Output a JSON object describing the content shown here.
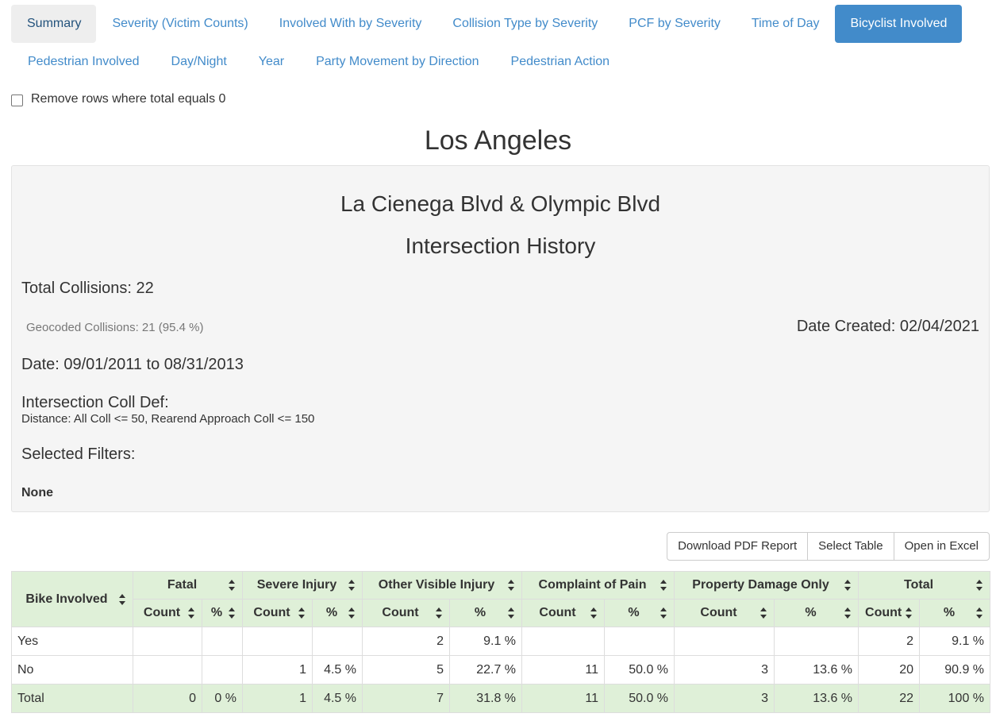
{
  "tabs_row1": [
    "Summary",
    "Severity (Victim Counts)",
    "Involved With by Severity",
    "Collision Type by Severity",
    "PCF by Severity",
    "Time of Day",
    "Bicyclist Involved"
  ],
  "tabs_row2": [
    "Pedestrian Involved",
    "Day/Night",
    "Year",
    "Party Movement by Direction",
    "Pedestrian Action"
  ],
  "filter": {
    "remove_zero_label": "Remove rows where total equals 0",
    "checked": false
  },
  "city_title": "Los Angeles",
  "report": {
    "location": "La Cienega Blvd & Olympic Blvd",
    "heading": "Intersection History",
    "total_collisions": "Total Collisions: 22",
    "geocoded": "Geocoded Collisions: 21 (95.4 %)",
    "date_created": "Date Created: 02/04/2021",
    "date_range": "Date: 09/01/2011 to 08/31/2013",
    "intersection_def_label": "Intersection Coll Def:",
    "intersection_def_value": "Distance: All Coll <= 50, Rearend Approach Coll <= 150",
    "selected_filters_label": "Selected Filters:",
    "selected_filters_value": "None"
  },
  "buttons": {
    "download_pdf": "Download PDF Report",
    "select_table": "Select Table",
    "open_excel": "Open in Excel"
  },
  "table": {
    "row_header": "Bike Involved",
    "groups": [
      "Fatal",
      "Severe Injury",
      "Other Visible Injury",
      "Complaint of Pain",
      "Property Damage Only",
      "Total"
    ],
    "sub_count": "Count",
    "sub_pct": "%",
    "rows": [
      {
        "label": "Yes",
        "cells": [
          "",
          "",
          "",
          "",
          "2",
          "9.1 %",
          "",
          "",
          "",
          "",
          "2",
          "9.1 %"
        ]
      },
      {
        "label": "No",
        "cells": [
          "",
          "",
          "1",
          "4.5 %",
          "5",
          "22.7 %",
          "11",
          "50.0 %",
          "3",
          "13.6 %",
          "20",
          "90.9 %"
        ]
      },
      {
        "label": "Total",
        "cells": [
          "0",
          "0 %",
          "1",
          "4.5 %",
          "7",
          "31.8 %",
          "11",
          "50.0 %",
          "3",
          "13.6 %",
          "22",
          "100 %"
        ]
      }
    ]
  },
  "colors": {
    "accent": "#428bca",
    "table_header": "#dff0d8",
    "well_bg": "#f5f5f5"
  }
}
